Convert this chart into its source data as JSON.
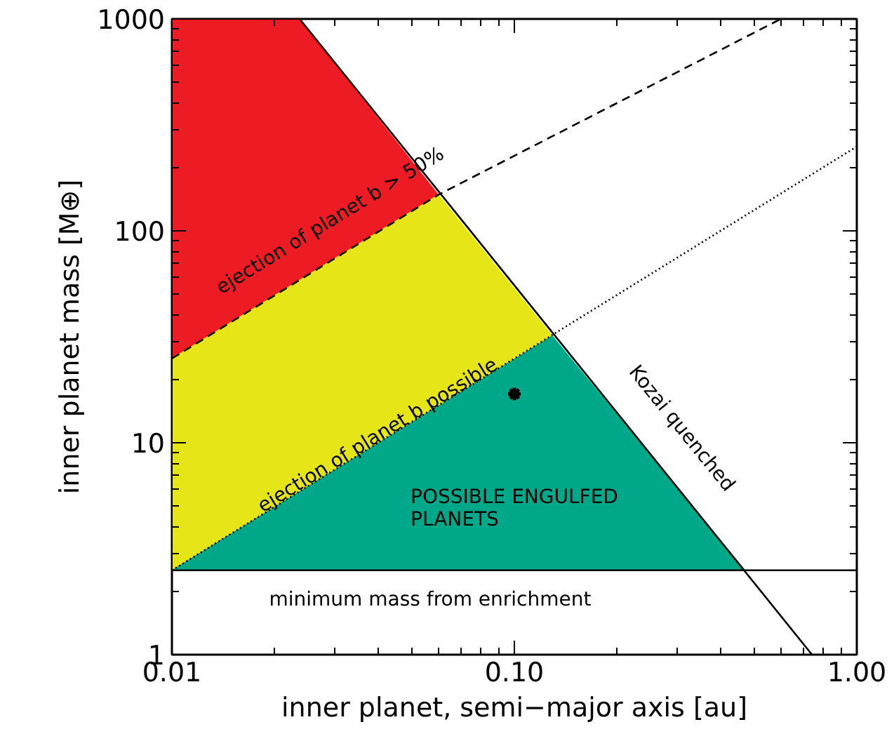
{
  "chart_data": {
    "type": "line",
    "xlabel": "inner planet, semi−major axis [au]",
    "ylabel": "inner planet mass [M⊕]",
    "log": "xy",
    "xlim": [
      0.01,
      1.0
    ],
    "ylim": [
      1,
      1000
    ],
    "xticks": [
      {
        "value": 0.01,
        "label": "0.01"
      },
      {
        "value": 0.1,
        "label": "0.10"
      },
      {
        "value": 1.0,
        "label": "1.00"
      }
    ],
    "yticks": [
      {
        "value": 1,
        "label": "1"
      },
      {
        "value": 10,
        "label": "10"
      },
      {
        "value": 100,
        "label": "100"
      },
      {
        "value": 1000,
        "label": "1000"
      }
    ],
    "grid": false,
    "series": [
      {
        "type": "area",
        "color": "#ed1c24",
        "x": [
          0.01,
          0.0236,
          0.06,
          0.01
        ],
        "values": [
          1000,
          1000,
          148,
          25
        ]
      },
      {
        "type": "area",
        "color": "#e5e517",
        "x": [
          0.01,
          0.06,
          0.129,
          0.01
        ],
        "values": [
          25,
          148,
          32,
          2.5
        ]
      },
      {
        "type": "area",
        "color": "#00a88a",
        "x": [
          0.01,
          0.129,
          0.472
        ],
        "values": [
          2.5,
          32,
          2.5
        ]
      },
      {
        "color": "#000000",
        "line_style": "solid",
        "x": [
          0.0236,
          0.74
        ],
        "values": [
          1000,
          1
        ]
      },
      {
        "color": "#000000",
        "line_style": "dashed",
        "x": [
          0.01,
          0.06,
          0.6
        ],
        "values": [
          25,
          148,
          1000
        ]
      },
      {
        "color": "#000000",
        "line_style": "dotted",
        "x": [
          0.01,
          1.0
        ],
        "values": [
          2.5,
          250
        ]
      },
      {
        "type": "scatter",
        "color": "#000000",
        "marker": "cross",
        "x": [
          0.1
        ],
        "values": [
          17
        ]
      }
    ],
    "ref_lines": [
      {
        "axis": "y",
        "value": 2.5,
        "color": "#000000"
      }
    ],
    "annotations": [
      "ejection of planet b > 50%",
      {
        "text": "ejection of planet b possible",
        "x": 0.04,
        "y": 10.8
      },
      "Kozai quenched",
      "POSSIBLE ENGULFED\nPLANETS",
      "minimum mass from enrichment"
    ]
  }
}
